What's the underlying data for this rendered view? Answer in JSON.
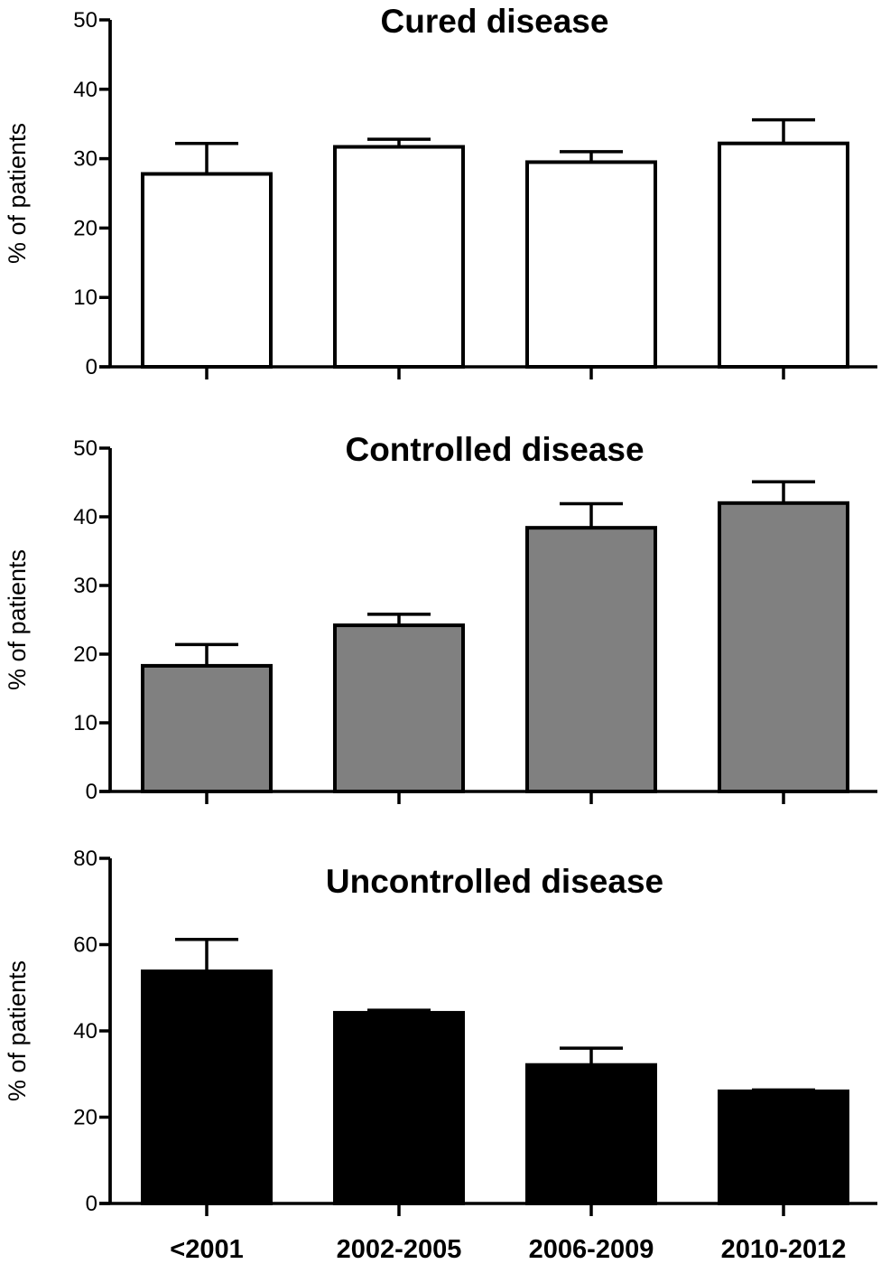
{
  "chart_data": [
    {
      "type": "bar",
      "title": "Cured disease",
      "ylabel": "% of patients",
      "xlabel": "",
      "categories": [
        "<2001",
        "2002-2005",
        "2006-2009",
        "2010-2012"
      ],
      "show_categories": false,
      "values": [
        27.8,
        31.7,
        29.5,
        32.2
      ],
      "errors": [
        4.4,
        1.1,
        1.5,
        3.4
      ],
      "ylim": [
        0,
        50
      ],
      "yticks": [
        0,
        10,
        20,
        30,
        40,
        50
      ],
      "fill": "#ffffff",
      "grid": false
    },
    {
      "type": "bar",
      "title": "Controlled disease",
      "ylabel": "% of patients",
      "xlabel": "",
      "categories": [
        "<2001",
        "2002-2005",
        "2006-2009",
        "2010-2012"
      ],
      "show_categories": false,
      "values": [
        18.3,
        24.2,
        38.4,
        42.0
      ],
      "errors": [
        3.1,
        1.6,
        3.5,
        3.1
      ],
      "ylim": [
        0,
        50
      ],
      "yticks": [
        0,
        10,
        20,
        30,
        40,
        50
      ],
      "fill": "#808080",
      "grid": false
    },
    {
      "type": "bar",
      "title": "Uncontrolled disease",
      "ylabel": "% of patients",
      "xlabel": "",
      "categories": [
        "<2001",
        "2002-2005",
        "2006-2009",
        "2010-2012"
      ],
      "show_categories": true,
      "values": [
        53.8,
        44.2,
        32.1,
        26.0
      ],
      "errors": [
        7.4,
        0.6,
        3.9,
        0.3
      ],
      "ylim": [
        0,
        80
      ],
      "yticks": [
        0,
        20,
        40,
        60,
        80
      ],
      "fill": "#000000",
      "grid": false
    }
  ]
}
